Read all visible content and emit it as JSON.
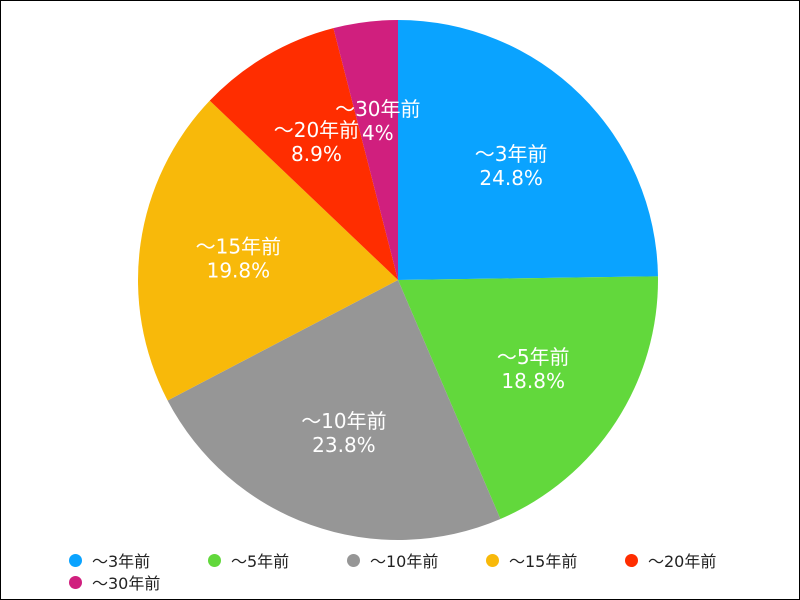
{
  "chart_data": {
    "type": "pie",
    "title": "",
    "categories": [
      "～3年前",
      "～5年前",
      "～10年前",
      "～15年前",
      "～20年前",
      "～30年前"
    ],
    "values": [
      24.8,
      18.8,
      23.8,
      19.8,
      8.9,
      4
    ],
    "value_labels": [
      "24.8%",
      "18.8%",
      "23.8%",
      "19.8%",
      "8.9%",
      "4%"
    ],
    "colors": [
      "#0aa3ff",
      "#62d83c",
      "#969696",
      "#f8b90a",
      "#ff2d00",
      "#d01f7e"
    ],
    "start_angle_deg": 0,
    "direction": "clockwise",
    "legend_position": "bottom"
  }
}
